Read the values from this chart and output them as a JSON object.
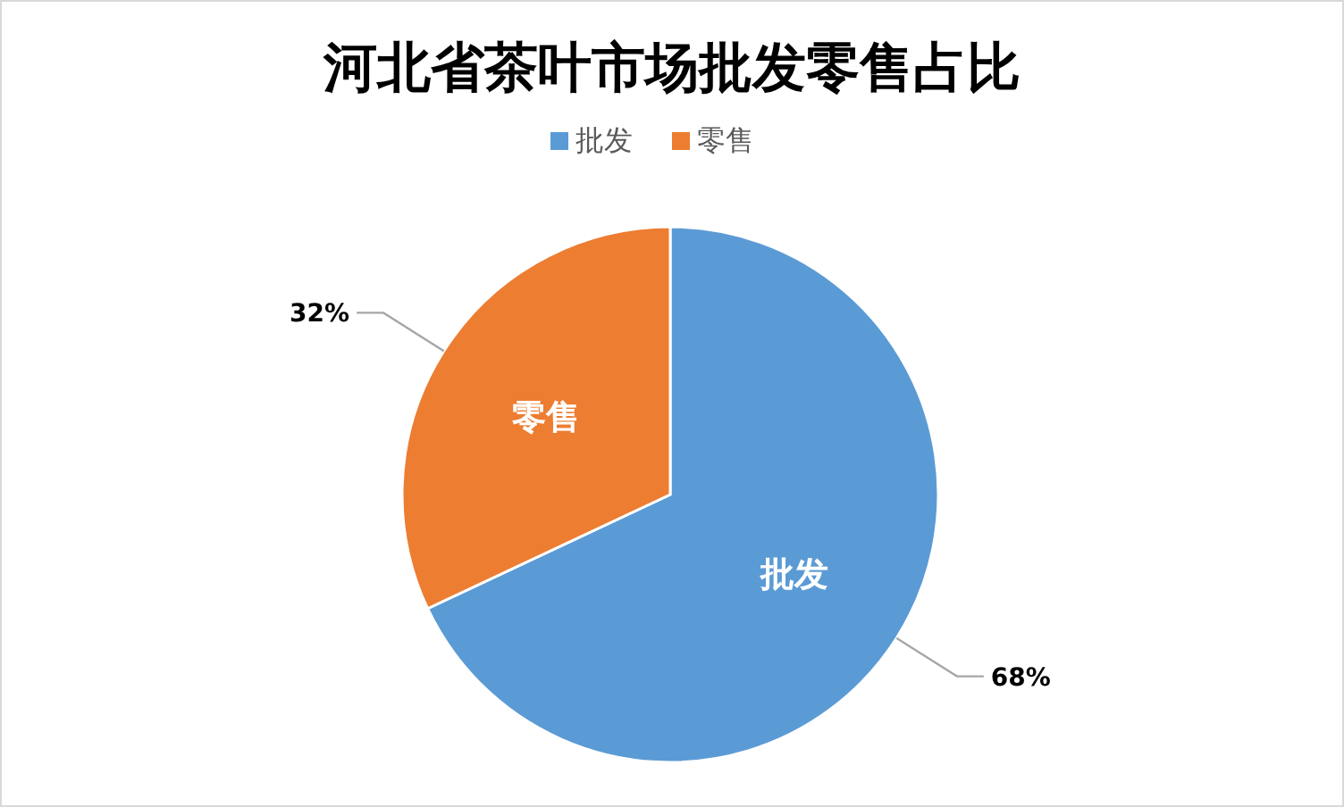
{
  "chart_data": {
    "type": "pie",
    "title": "河北省茶叶市场批发零售占比",
    "categories": [
      "批发",
      "零售"
    ],
    "values": [
      68,
      32
    ],
    "colors": [
      "#5b9bd5",
      "#ed7d31"
    ],
    "value_labels": [
      "68%",
      "32%"
    ],
    "legend": "top"
  }
}
